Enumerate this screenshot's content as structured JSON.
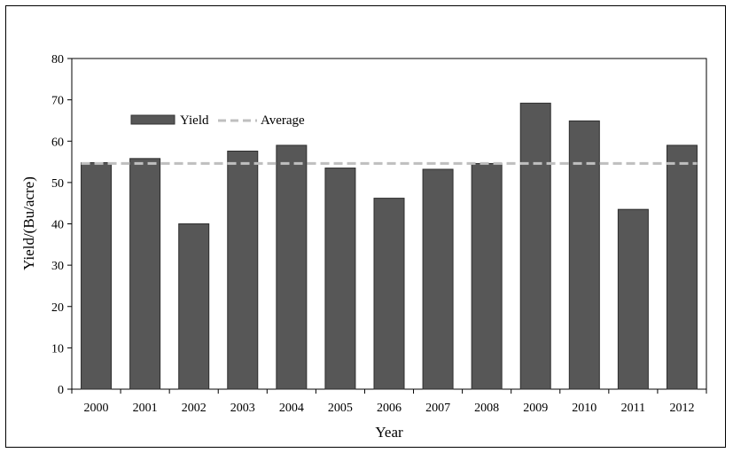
{
  "chart_data": {
    "type": "bar",
    "title": "",
    "xlabel": "Year",
    "ylabel": "Yield/(Bu/acre)",
    "ylim": [
      0,
      80
    ],
    "yticks": [
      0,
      10,
      20,
      30,
      40,
      50,
      60,
      70,
      80
    ],
    "categories": [
      "2000",
      "2001",
      "2002",
      "2003",
      "2004",
      "2005",
      "2006",
      "2007",
      "2008",
      "2009",
      "2010",
      "2011",
      "2012"
    ],
    "series": [
      {
        "name": "Yield",
        "type": "bar",
        "color": "#575757",
        "values": [
          54.8,
          55.8,
          40.0,
          57.6,
          59.0,
          53.5,
          46.2,
          53.2,
          54.6,
          69.2,
          64.9,
          43.5,
          59.0
        ]
      },
      {
        "name": "Average",
        "type": "line",
        "style": "dashed",
        "color": "#bfbfbf",
        "value": 54.6
      }
    ],
    "legend": {
      "position": "top-left",
      "entries": [
        "Yield",
        "Average"
      ]
    },
    "grid": false
  }
}
